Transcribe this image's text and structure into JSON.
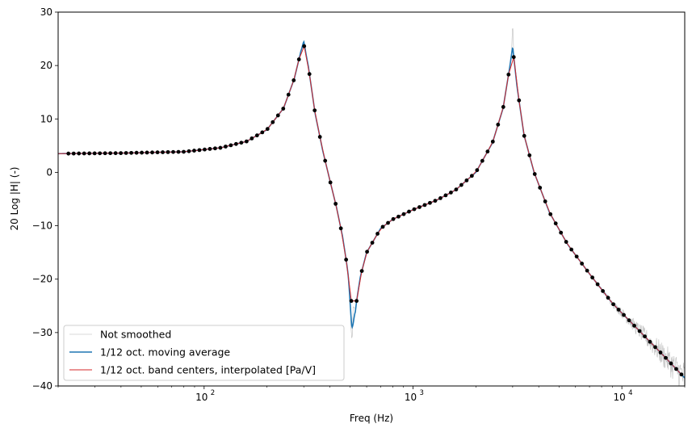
{
  "chart_data": {
    "type": "line",
    "title": "",
    "xlabel": "Freq (Hz)",
    "ylabel": "20 Log |H| (-)",
    "xscale": "log",
    "xlim": [
      20,
      20000
    ],
    "ylim": [
      -40,
      30
    ],
    "yticks": [
      -40,
      -30,
      -20,
      -10,
      0,
      10,
      20,
      30
    ],
    "yticklabels": [
      "−40",
      "−30",
      "−20",
      "−10",
      "0",
      "10",
      "20",
      "30"
    ],
    "xticks": [
      100,
      1000,
      10000
    ],
    "xticklabels": [
      "10",
      "10",
      "10"
    ],
    "xticklabel_exponents": [
      "2",
      "3",
      "4"
    ],
    "grid": false,
    "legend_position": "lower-left",
    "series": [
      {
        "name": "Not smoothed",
        "color": "#cccccc",
        "style": "thin-noisy-line"
      },
      {
        "name": "1/12 oct. moving average",
        "color": "#1f77b4",
        "style": "line"
      },
      {
        "name": "1/12 oct. band centers, interpolated [Pa/V]",
        "color": "#d62728",
        "style": "line-with-points",
        "marker_color": "#000000"
      }
    ],
    "model_points": [
      [
        20,
        3.5
      ],
      [
        40,
        3.6
      ],
      [
        80,
        3.85
      ],
      [
        120,
        4.6
      ],
      [
        160,
        5.8
      ],
      [
        200,
        8.0
      ],
      [
        240,
        12.0
      ],
      [
        270,
        17.5
      ],
      [
        290,
        22.5
      ],
      [
        300,
        24.0
      ],
      [
        315,
        20.0
      ],
      [
        340,
        11.0
      ],
      [
        370,
        4.0
      ],
      [
        400,
        -1.5
      ],
      [
        430,
        -6.5
      ],
      [
        460,
        -12.0
      ],
      [
        490,
        -19.0
      ],
      [
        510,
        -25.0
      ],
      [
        530,
        -25.5
      ],
      [
        560,
        -19.5
      ],
      [
        600,
        -15.0
      ],
      [
        700,
        -10.5
      ],
      [
        800,
        -8.8
      ],
      [
        1000,
        -7.0
      ],
      [
        1300,
        -5.2
      ],
      [
        1600,
        -3.3
      ],
      [
        2000,
        0.0
      ],
      [
        2400,
        5.5
      ],
      [
        2700,
        12.0
      ],
      [
        2900,
        19.5
      ],
      [
        3000,
        23.5
      ],
      [
        3150,
        16.0
      ],
      [
        3400,
        7.0
      ],
      [
        3800,
        0.0
      ],
      [
        4500,
        -7.5
      ],
      [
        5500,
        -13.5
      ],
      [
        7000,
        -19.0
      ],
      [
        9000,
        -24.5
      ],
      [
        12000,
        -29.5
      ],
      [
        16000,
        -34.5
      ],
      [
        20000,
        -38.5
      ]
    ],
    "moving_average_deviation": {
      "freq": 510,
      "value": -29.0
    },
    "unsmoothed_extremes": [
      {
        "freq": 3000,
        "value": 28.0
      },
      {
        "freq": 510,
        "value": -32.0
      }
    ],
    "band_center_start_hz": 22.4,
    "band_center_end_hz": 20000
  }
}
